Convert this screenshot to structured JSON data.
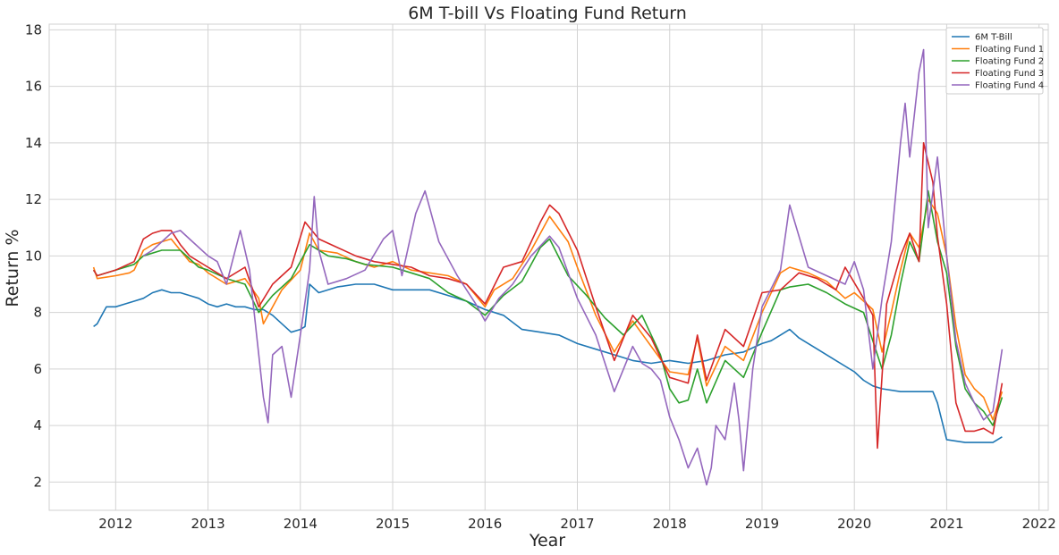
{
  "chart_data": {
    "type": "line",
    "title": "6M T-bill Vs Floating Fund Return",
    "xlabel": "Year",
    "ylabel": "Return %",
    "xlim": [
      2011.28,
      2022.1
    ],
    "ylim": [
      1.0,
      18.2
    ],
    "x_ticks": [
      2012,
      2013,
      2014,
      2015,
      2016,
      2017,
      2018,
      2019,
      2020,
      2021,
      2022
    ],
    "x_tick_labels": [
      "2012",
      "2013",
      "2014",
      "2015",
      "2016",
      "2017",
      "2018",
      "2019",
      "2020",
      "2021",
      "2022"
    ],
    "y_ticks": [
      2,
      4,
      6,
      8,
      10,
      12,
      14,
      16,
      18
    ],
    "y_tick_labels": [
      "2",
      "4",
      "6",
      "8",
      "10",
      "12",
      "14",
      "16",
      "18"
    ],
    "grid": true,
    "legend_position": "top-right",
    "series": [
      {
        "name": "6M T-Bill",
        "color": "#1f77b4",
        "x": [
          2011.76,
          2011.8,
          2011.85,
          2011.9,
          2012.0,
          2012.1,
          2012.2,
          2012.3,
          2012.4,
          2012.5,
          2012.6,
          2012.7,
          2012.8,
          2012.9,
          2013.0,
          2013.1,
          2013.2,
          2013.3,
          2013.4,
          2013.5,
          2013.6,
          2013.7,
          2013.8,
          2013.9,
          2014.0,
          2014.05,
          2014.1,
          2014.2,
          2014.4,
          2014.6,
          2014.8,
          2015.0,
          2015.2,
          2015.4,
          2015.6,
          2015.8,
          2016.0,
          2016.2,
          2016.4,
          2016.6,
          2016.8,
          2017.0,
          2017.2,
          2017.4,
          2017.6,
          2017.8,
          2018.0,
          2018.2,
          2018.4,
          2018.6,
          2018.8,
          2019.0,
          2019.1,
          2019.2,
          2019.3,
          2019.4,
          2019.6,
          2019.8,
          2020.0,
          2020.1,
          2020.2,
          2020.3,
          2020.5,
          2020.7,
          2020.85,
          2020.9,
          2021.0,
          2021.2,
          2021.4,
          2021.5,
          2021.6
        ],
        "y": [
          7.5,
          7.6,
          7.9,
          8.2,
          8.2,
          8.3,
          8.4,
          8.5,
          8.7,
          8.8,
          8.7,
          8.7,
          8.6,
          8.5,
          8.3,
          8.2,
          8.3,
          8.2,
          8.2,
          8.1,
          8.1,
          7.9,
          7.6,
          7.3,
          7.4,
          7.5,
          9.0,
          8.7,
          8.9,
          9.0,
          9.0,
          8.8,
          8.8,
          8.8,
          8.6,
          8.4,
          8.1,
          7.9,
          7.4,
          7.3,
          7.2,
          6.9,
          6.7,
          6.5,
          6.3,
          6.2,
          6.3,
          6.2,
          6.3,
          6.5,
          6.6,
          6.9,
          7.0,
          7.2,
          7.4,
          7.1,
          6.7,
          6.3,
          5.9,
          5.6,
          5.4,
          5.3,
          5.2,
          5.2,
          5.2,
          4.8,
          3.5,
          3.4,
          3.4,
          3.4,
          3.6
        ]
      },
      {
        "name": "Floating Fund 1",
        "color": "#ff7f0e",
        "x": [
          2011.76,
          2011.8,
          2012.0,
          2012.15,
          2012.2,
          2012.3,
          2012.4,
          2012.5,
          2012.6,
          2012.7,
          2012.8,
          2012.9,
          2013.0,
          2013.2,
          2013.4,
          2013.55,
          2013.6,
          2013.8,
          2014.0,
          2014.1,
          2014.2,
          2014.4,
          2014.6,
          2014.8,
          2015.0,
          2015.2,
          2015.4,
          2015.6,
          2015.8,
          2016.0,
          2016.1,
          2016.3,
          2016.5,
          2016.7,
          2016.9,
          2017.0,
          2017.2,
          2017.4,
          2017.6,
          2017.8,
          2018.0,
          2018.2,
          2018.3,
          2018.4,
          2018.6,
          2018.8,
          2019.0,
          2019.2,
          2019.3,
          2019.5,
          2019.7,
          2019.9,
          2020.0,
          2020.2,
          2020.3,
          2020.4,
          2020.5,
          2020.6,
          2020.7,
          2020.8,
          2020.9,
          2021.0,
          2021.1,
          2021.2,
          2021.3,
          2021.4,
          2021.5,
          2021.6
        ],
        "y": [
          9.6,
          9.2,
          9.3,
          9.4,
          9.5,
          10.2,
          10.4,
          10.5,
          10.6,
          10.2,
          9.8,
          9.7,
          9.4,
          9.0,
          9.2,
          8.5,
          7.6,
          8.8,
          9.5,
          10.8,
          10.2,
          10.1,
          9.8,
          9.6,
          9.8,
          9.5,
          9.4,
          9.3,
          9.0,
          8.2,
          8.8,
          9.2,
          10.2,
          11.4,
          10.5,
          9.6,
          7.9,
          6.6,
          7.7,
          6.8,
          5.9,
          5.8,
          7.1,
          5.4,
          6.8,
          6.3,
          8.0,
          9.4,
          9.6,
          9.4,
          9.1,
          8.5,
          8.7,
          8.1,
          6.6,
          8.0,
          9.5,
          10.8,
          10.3,
          12.0,
          11.5,
          10.0,
          7.5,
          5.8,
          5.3,
          5.0,
          4.2,
          5.2
        ]
      },
      {
        "name": "Floating Fund 2",
        "color": "#2ca02c",
        "x": [
          2011.76,
          2011.8,
          2012.0,
          2012.2,
          2012.3,
          2012.5,
          2012.7,
          2012.9,
          2013.0,
          2013.2,
          2013.4,
          2013.55,
          2013.7,
          2013.9,
          2014.1,
          2014.3,
          2014.5,
          2014.7,
          2015.0,
          2015.2,
          2015.4,
          2015.6,
          2015.8,
          2016.0,
          2016.2,
          2016.4,
          2016.6,
          2016.7,
          2016.9,
          2017.1,
          2017.3,
          2017.5,
          2017.7,
          2017.9,
          2018.0,
          2018.1,
          2018.2,
          2018.3,
          2018.4,
          2018.6,
          2018.8,
          2019.0,
          2019.2,
          2019.3,
          2019.5,
          2019.7,
          2019.9,
          2020.1,
          2020.3,
          2020.4,
          2020.5,
          2020.6,
          2020.7,
          2020.8,
          2020.9,
          2021.0,
          2021.1,
          2021.2,
          2021.3,
          2021.4,
          2021.5,
          2021.6
        ],
        "y": [
          9.5,
          9.3,
          9.5,
          9.7,
          10.0,
          10.2,
          10.2,
          9.6,
          9.5,
          9.2,
          9.0,
          8.0,
          8.6,
          9.2,
          10.4,
          10.0,
          9.9,
          9.7,
          9.6,
          9.4,
          9.2,
          8.7,
          8.4,
          7.9,
          8.6,
          9.1,
          10.3,
          10.6,
          9.3,
          8.6,
          7.8,
          7.2,
          7.9,
          6.5,
          5.3,
          4.8,
          4.9,
          6.0,
          4.8,
          6.3,
          5.7,
          7.3,
          8.8,
          8.9,
          9.0,
          8.7,
          8.3,
          8.0,
          6.0,
          7.2,
          9.0,
          10.5,
          9.8,
          12.3,
          10.5,
          9.4,
          6.8,
          5.3,
          4.8,
          4.5,
          4.0,
          5.0
        ]
      },
      {
        "name": "Floating Fund 3",
        "color": "#d62728",
        "x": [
          2011.76,
          2011.8,
          2012.0,
          2012.2,
          2012.3,
          2012.4,
          2012.5,
          2012.6,
          2012.7,
          2012.8,
          2013.0,
          2013.2,
          2013.4,
          2013.55,
          2013.7,
          2013.9,
          2014.05,
          2014.2,
          2014.4,
          2014.6,
          2014.8,
          2015.0,
          2015.2,
          2015.4,
          2015.6,
          2015.8,
          2016.0,
          2016.2,
          2016.4,
          2016.6,
          2016.7,
          2016.8,
          2017.0,
          2017.2,
          2017.4,
          2017.6,
          2017.8,
          2018.0,
          2018.2,
          2018.3,
          2018.4,
          2018.6,
          2018.8,
          2019.0,
          2019.2,
          2019.4,
          2019.6,
          2019.8,
          2019.9,
          2020.1,
          2020.2,
          2020.25,
          2020.35,
          2020.5,
          2020.6,
          2020.7,
          2020.75,
          2020.85,
          2020.9,
          2021.0,
          2021.1,
          2021.2,
          2021.3,
          2021.4,
          2021.5,
          2021.6
        ],
        "y": [
          9.5,
          9.3,
          9.5,
          9.8,
          10.6,
          10.8,
          10.9,
          10.9,
          10.4,
          10.0,
          9.6,
          9.2,
          9.6,
          8.2,
          9.0,
          9.6,
          11.2,
          10.6,
          10.3,
          10.0,
          9.8,
          9.7,
          9.6,
          9.3,
          9.2,
          9.0,
          8.3,
          9.6,
          9.8,
          11.2,
          11.8,
          11.5,
          10.2,
          8.2,
          6.3,
          7.9,
          7.1,
          5.7,
          5.5,
          7.2,
          5.6,
          7.4,
          6.8,
          8.7,
          8.8,
          9.4,
          9.2,
          8.8,
          9.6,
          8.5,
          7.9,
          3.2,
          8.3,
          10.0,
          10.8,
          9.8,
          14.0,
          12.6,
          10.7,
          8.3,
          4.8,
          3.8,
          3.8,
          3.9,
          3.7,
          5.5
        ]
      },
      {
        "name": "Floating Fund 4",
        "color": "#9467bd",
        "x": [
          2012.3,
          2012.4,
          2012.5,
          2012.6,
          2012.7,
          2012.8,
          2013.0,
          2013.1,
          2013.2,
          2013.35,
          2013.45,
          2013.55,
          2013.6,
          2013.65,
          2013.7,
          2013.8,
          2013.9,
          2014.0,
          2014.1,
          2014.15,
          2014.2,
          2014.3,
          2014.5,
          2014.7,
          2014.9,
          2015.0,
          2015.1,
          2015.25,
          2015.35,
          2015.5,
          2015.7,
          2015.9,
          2016.0,
          2016.15,
          2016.3,
          2016.5,
          2016.7,
          2016.8,
          2017.0,
          2017.2,
          2017.4,
          2017.5,
          2017.6,
          2017.7,
          2017.8,
          2017.9,
          2018.0,
          2018.1,
          2018.2,
          2018.3,
          2018.4,
          2018.45,
          2018.5,
          2018.6,
          2018.7,
          2018.75,
          2018.8,
          2018.9,
          2019.0,
          2019.2,
          2019.3,
          2019.5,
          2019.7,
          2019.9,
          2020.0,
          2020.1,
          2020.2,
          2020.3,
          2020.4,
          2020.5,
          2020.55,
          2020.6,
          2020.7,
          2020.75,
          2020.8,
          2020.9,
          2021.0,
          2021.1,
          2021.2,
          2021.3,
          2021.4,
          2021.5,
          2021.6
        ],
        "y": [
          10.0,
          10.2,
          10.5,
          10.8,
          10.9,
          10.6,
          10.0,
          9.8,
          9.0,
          10.9,
          9.5,
          6.5,
          5.0,
          4.1,
          6.5,
          6.8,
          5.0,
          7.2,
          9.5,
          12.1,
          10.2,
          9.0,
          9.2,
          9.5,
          10.6,
          10.9,
          9.3,
          11.5,
          12.3,
          10.5,
          9.3,
          8.3,
          7.7,
          8.5,
          9.0,
          10.0,
          10.7,
          10.3,
          8.5,
          7.2,
          5.2,
          6.0,
          6.8,
          6.2,
          6.0,
          5.6,
          4.3,
          3.5,
          2.5,
          3.2,
          1.9,
          2.5,
          4.0,
          3.5,
          5.5,
          4.2,
          2.4,
          6.0,
          8.2,
          9.5,
          11.8,
          9.6,
          9.3,
          9.0,
          9.8,
          8.8,
          6.0,
          8.5,
          10.5,
          14.0,
          15.4,
          13.5,
          16.5,
          17.3,
          11.0,
          13.5,
          10.0,
          7.0,
          5.5,
          4.8,
          4.2,
          4.5,
          6.7
        ]
      }
    ]
  }
}
